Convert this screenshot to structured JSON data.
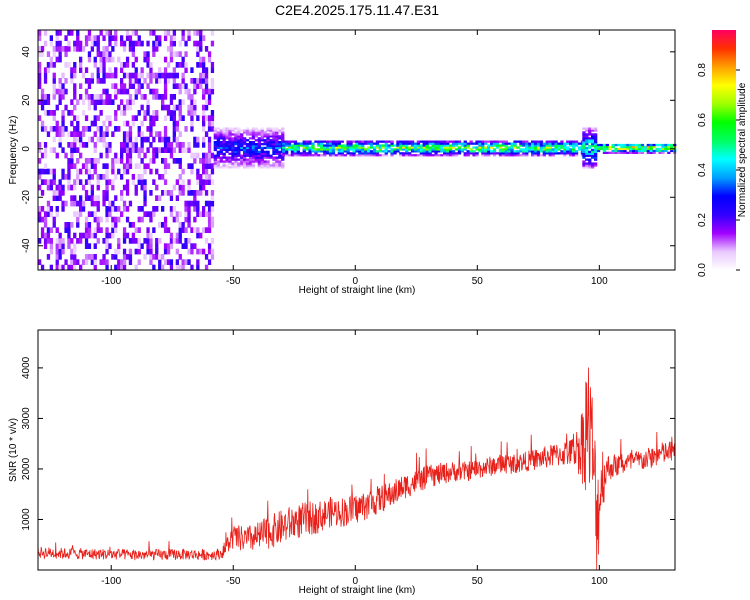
{
  "figure_title": "C2E4.2025.175.11.47.E31",
  "chart_data": [
    {
      "type": "heatmap",
      "xlabel": "Height of straight line (km)",
      "ylabel": "Frequency (Hz)",
      "xlim": [
        -130,
        131
      ],
      "ylim": [
        -50,
        49
      ],
      "xticks": [
        -100,
        -50,
        0,
        50,
        100
      ],
      "yticks": [
        -40,
        -20,
        0,
        20,
        40
      ],
      "colorbar": {
        "label": "Normalized spectral amplitude",
        "range": [
          0,
          0.96
        ],
        "ticks": [
          0.0,
          0.2,
          0.4,
          0.6,
          0.8
        ],
        "colors": [
          "#ffffff",
          "#e9c8ff",
          "#a000ff",
          "#3000ff",
          "#0000ff",
          "#00a0ff",
          "#00ffff",
          "#00ff60",
          "#00ff00",
          "#a0ff00",
          "#ffff00",
          "#ffa000",
          "#ff3000",
          "#ff0060"
        ]
      },
      "regions": [
        {
          "x_range": [
            -130,
            -58
          ],
          "desc_level": 0.15,
          "freq_band": [
            -50,
            49
          ]
        },
        {
          "x_range": [
            -58,
            -30
          ],
          "desc_level": 0.35,
          "freq_band": [
            -8,
            8
          ]
        },
        {
          "x_range": [
            -30,
            93
          ],
          "desc_level": 0.7,
          "freq_band": [
            -3,
            3
          ]
        },
        {
          "x_range": [
            93,
            99
          ],
          "desc_level": 0.55,
          "freq_band": [
            -8,
            8
          ]
        },
        {
          "x_range": [
            99,
            131
          ],
          "desc_level": 0.85,
          "freq_band": [
            -2,
            2
          ]
        }
      ]
    },
    {
      "type": "line",
      "xlabel": "Height of straight line (km)",
      "ylabel": "SNR (10 * v/v)",
      "xlim": [
        -130,
        131
      ],
      "ylim": [
        0,
        4750
      ],
      "xticks": [
        -100,
        -50,
        0,
        50,
        100
      ],
      "yticks": [
        1000,
        2000,
        3000,
        4000
      ],
      "series": [
        {
          "color": "#e8201a",
          "x": [
            -130,
            -120,
            -110,
            -100,
            -90,
            -80,
            -70,
            -60,
            -55,
            -50,
            -45,
            -40,
            -35,
            -30,
            -25,
            -20,
            -15,
            -10,
            -5,
            0,
            5,
            10,
            15,
            20,
            25,
            30,
            35,
            40,
            45,
            50,
            55,
            60,
            65,
            70,
            75,
            80,
            85,
            90,
            93,
            95,
            97,
            99,
            101,
            103,
            105,
            110,
            115,
            120,
            125,
            131
          ],
          "y": [
            350,
            330,
            320,
            310,
            300,
            300,
            310,
            300,
            320,
            650,
            600,
            650,
            750,
            850,
            950,
            1000,
            1050,
            1150,
            1150,
            1200,
            1300,
            1400,
            1500,
            1650,
            1750,
            1850,
            1900,
            1950,
            1950,
            2000,
            2050,
            2100,
            2100,
            2150,
            2200,
            2250,
            2300,
            2350,
            2500,
            3000,
            2500,
            1000,
            1800,
            2000,
            2050,
            2100,
            2150,
            2200,
            2300,
            2350
          ],
          "spread": [
            120,
            110,
            110,
            110,
            110,
            110,
            110,
            110,
            110,
            250,
            260,
            300,
            330,
            350,
            350,
            350,
            320,
            300,
            300,
            300,
            300,
            280,
            260,
            250,
            240,
            230,
            220,
            200,
            200,
            200,
            200,
            200,
            200,
            200,
            220,
            230,
            250,
            300,
            800,
            1500,
            1200,
            1200,
            800,
            300,
            250,
            220,
            220,
            220,
            230,
            230
          ]
        }
      ]
    }
  ]
}
